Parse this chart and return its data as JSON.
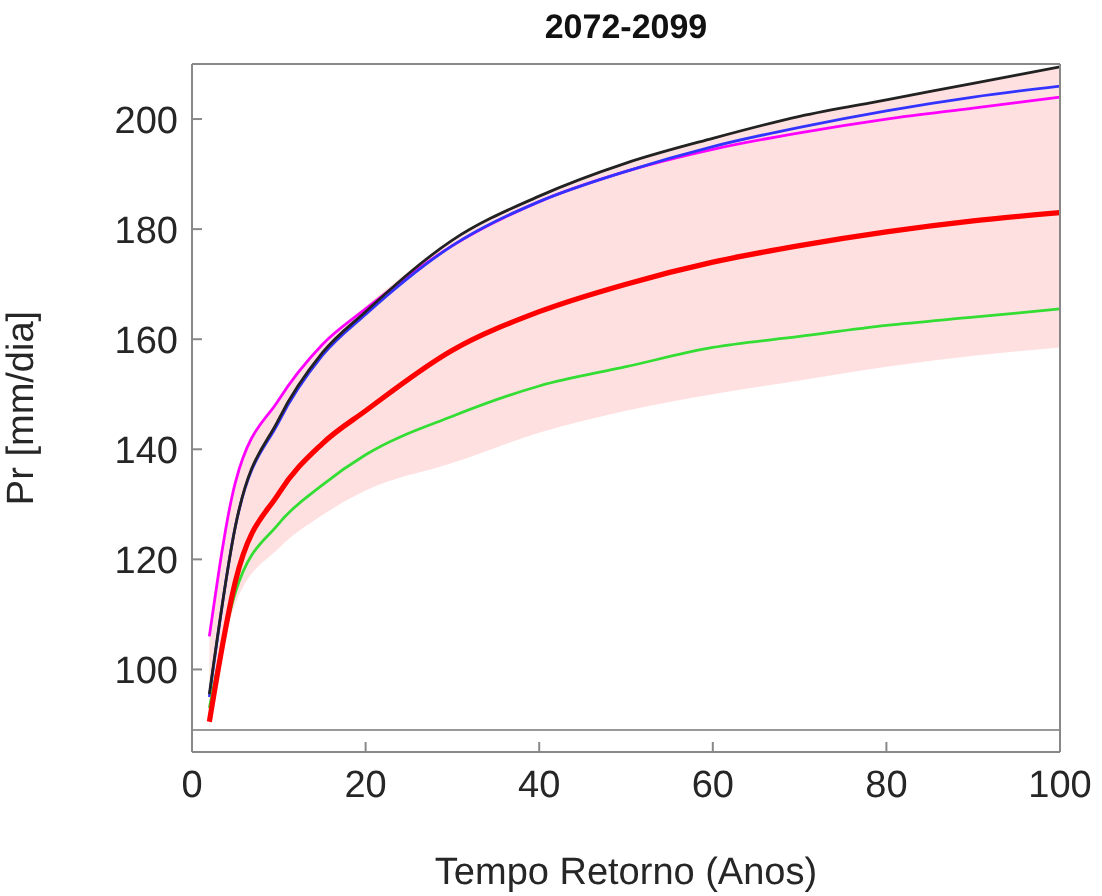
{
  "chart_data": {
    "type": "line",
    "title": "2072-2099",
    "xlabel": "Tempo Retorno (Anos)",
    "ylabel": "Pr [mm/dia]",
    "x": [
      2,
      5,
      10,
      15,
      20,
      30,
      40,
      50,
      60,
      70,
      80,
      90,
      100
    ],
    "series": [
      {
        "color": "#ff00ff",
        "values": [
          106,
          134,
          149,
          159,
          165.5,
          177,
          185,
          190.5,
          194.5,
          197.5,
          200,
          202,
          204
        ]
      },
      {
        "color": "#3333ff",
        "values": [
          95,
          126,
          145,
          157,
          164.5,
          177,
          185,
          190.5,
          195,
          198.5,
          201.5,
          204,
          206
        ]
      },
      {
        "color": "#222222",
        "values": [
          95.5,
          126,
          145.5,
          157.5,
          165,
          178,
          186,
          192,
          196.5,
          200.5,
          203.5,
          206.5,
          209.5
        ]
      },
      {
        "color": "#33dd33",
        "values": [
          93,
          114,
          126.5,
          133.5,
          139,
          146,
          151.5,
          155,
          158.5,
          160.5,
          162.5,
          164,
          165.5
        ]
      },
      {
        "color": "#ff0000",
        "values": [
          90.5,
          116,
          132,
          141,
          147,
          158,
          165,
          170,
          174,
          177,
          179.5,
          181.5,
          183
        ],
        "lower": [
          89,
          112,
          122,
          128,
          132.5,
          137.5,
          143,
          147,
          150,
          152.5,
          155,
          157,
          158.5
        ],
        "upper": [
          106,
          134,
          149,
          159,
          166,
          178,
          186,
          192,
          196.5,
          200.5,
          203.5,
          206.5,
          209.5
        ]
      }
    ],
    "xlim": [
      0,
      100
    ],
    "xticks": [
      0,
      20,
      40,
      60,
      80,
      100
    ],
    "ylim": [
      85,
      210
    ],
    "yticks": [
      100,
      120,
      140,
      160,
      180,
      200
    ],
    "ref_lines": [
      {
        "axis": "y",
        "value": 89,
        "color": "#999999"
      }
    ],
    "grid": false,
    "legend": false,
    "marker": "none",
    "line_style": "solid"
  }
}
